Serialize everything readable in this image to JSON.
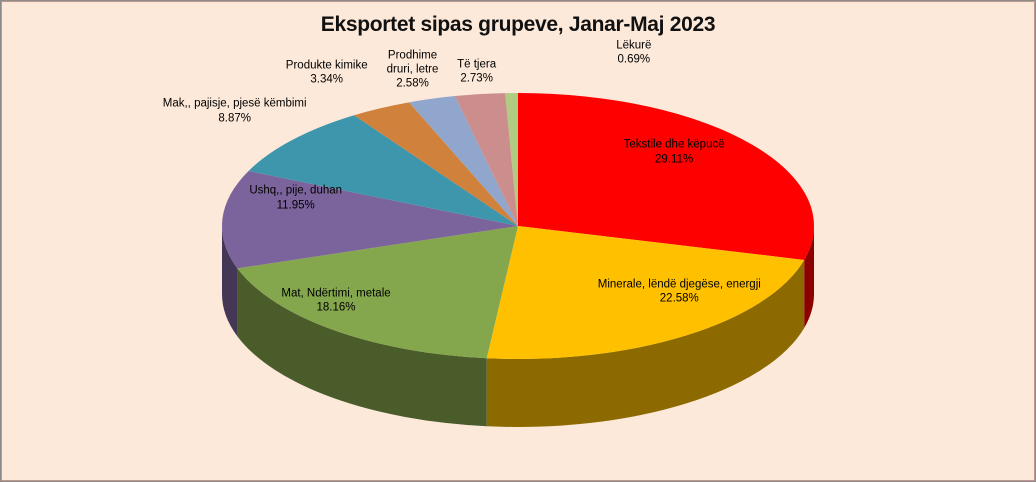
{
  "window": {
    "background": "#FCE9DA",
    "border_outer_color": "#8C8C8C",
    "border_inner_color": "#C0958C"
  },
  "chart_data": {
    "type": "pie",
    "effect": "3d",
    "title": "Eksportet sipas grupeve, Janar-Maj 2023",
    "title_color": "#111111",
    "legend": "none",
    "start_angle_deg": 0,
    "direction": "clockwise",
    "slices": [
      {
        "id": "tekstile",
        "label": "Tekstile dhe këpucë",
        "value": 29.11,
        "pct_text": "29.11%",
        "color": "#FE0000",
        "callout": {
          "lines": [
            "Tekstile dhe këpucë",
            "29.11%"
          ],
          "x": 65.1,
          "y": 31.5
        }
      },
      {
        "id": "minerale",
        "label": "Minerale, lëndë djegëse, energji",
        "value": 22.58,
        "pct_text": "22.58%",
        "color": "#FFC000",
        "callout": {
          "lines": [
            "Minerale, lëndë djegëse, energji",
            "22.58%"
          ],
          "x": 65.6,
          "y": 60.6
        }
      },
      {
        "id": "mat",
        "label": "Mat, Ndërtimi, metale",
        "value": 18.16,
        "pct_text": "18.16%",
        "color": "#84A74D",
        "callout": {
          "lines": [
            "Mat, Ndërtimi, metale",
            "18.16%"
          ],
          "x": 32.4,
          "y": 62.4
        }
      },
      {
        "id": "ushq",
        "label": "Ushq,, pije, duhan",
        "value": 11.95,
        "pct_text": "11.95%",
        "color": "#7B649B",
        "callout": {
          "lines": [
            "Ushq,, pije, duhan",
            "11.95%"
          ],
          "x": 28.5,
          "y": 41.1
        }
      },
      {
        "id": "mak",
        "label": "Mak,, pajisje, pjesë këmbimi",
        "value": 8.87,
        "pct_text": "8.87%",
        "color": "#3E96AD",
        "callout": {
          "lines": [
            "Mak,, pajisje, pjesë këmbimi",
            "8.87%"
          ],
          "x": 22.6,
          "y": 23.0
        }
      },
      {
        "id": "kimike",
        "label": "Produkte kimike",
        "value": 3.34,
        "pct_text": "3.34%",
        "color": "#D0813C",
        "callout": {
          "lines": [
            "Produkte kimike",
            "3.34%"
          ],
          "x": 31.5,
          "y": 14.9
        }
      },
      {
        "id": "druri",
        "label": "Prodhime druri, letre",
        "value": 2.58,
        "pct_text": "2.58%",
        "color": "#91A6CD",
        "callout": {
          "lines": [
            "Prodhime",
            "druri, letre",
            "2.58%"
          ],
          "x": 39.8,
          "y": 14.3
        }
      },
      {
        "id": "tetjera",
        "label": "Të tjera",
        "value": 2.73,
        "pct_text": "2.73%",
        "color": "#CC8E8C",
        "callout": {
          "lines": [
            "Të tjera",
            "2.73%"
          ],
          "x": 46.0,
          "y": 14.7
        }
      },
      {
        "id": "lekure",
        "label": "Lëkurë",
        "value": 0.69,
        "pct_text": "0.69%",
        "color": "#B2CB83",
        "callout": {
          "lines": [
            "Lëkurë",
            "0.69%"
          ],
          "x": 61.2,
          "y": 10.8
        }
      }
    ]
  }
}
